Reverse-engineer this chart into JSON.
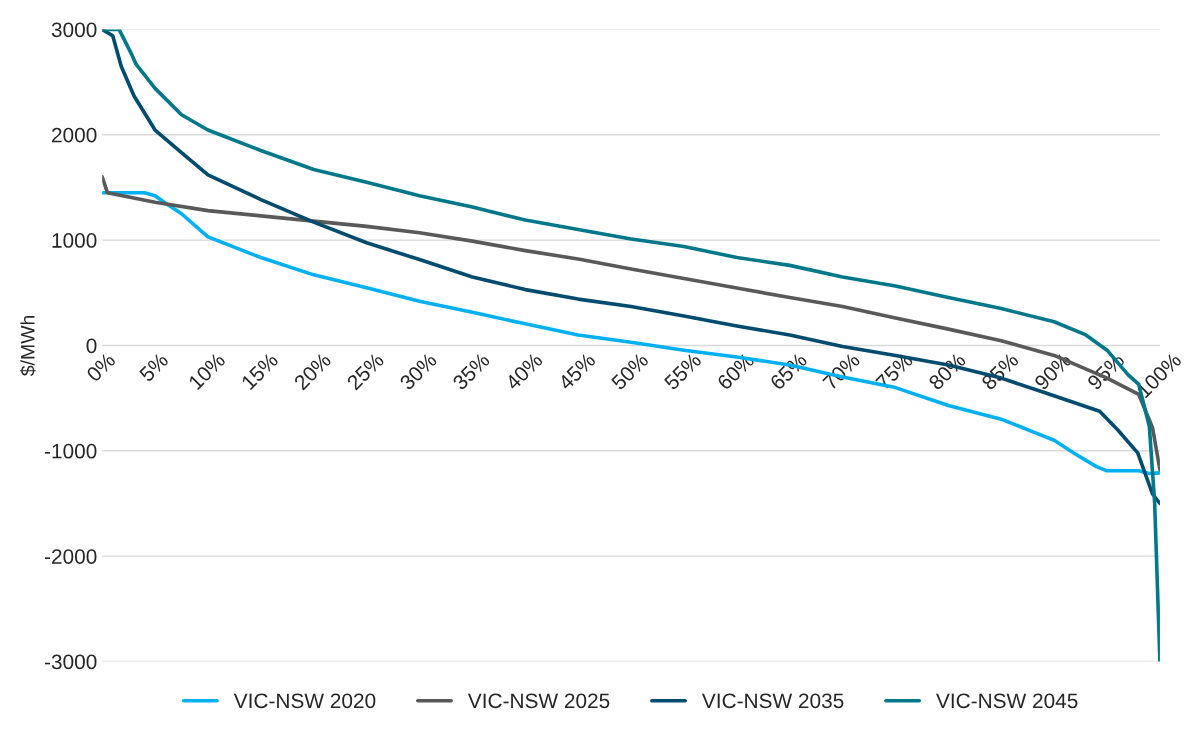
{
  "chart_data": {
    "type": "line",
    "ylabel": "$/MWh",
    "xlim": [
      0,
      100
    ],
    "ylim": [
      -3000,
      3000
    ],
    "yticks": [
      -3000,
      -2000,
      -1000,
      0,
      1000,
      2000,
      3000
    ],
    "xticks": [
      {
        "value": 0,
        "label": "0%"
      },
      {
        "value": 5,
        "label": "5%"
      },
      {
        "value": 10,
        "label": "10%"
      },
      {
        "value": 15,
        "label": "15%"
      },
      {
        "value": 20,
        "label": "20%"
      },
      {
        "value": 25,
        "label": "25%"
      },
      {
        "value": 30,
        "label": "30%"
      },
      {
        "value": 35,
        "label": "35%"
      },
      {
        "value": 40,
        "label": "40%"
      },
      {
        "value": 45,
        "label": "45%"
      },
      {
        "value": 50,
        "label": "50%"
      },
      {
        "value": 55,
        "label": "55%"
      },
      {
        "value": 60,
        "label": "60%"
      },
      {
        "value": 65,
        "label": "65%"
      },
      {
        "value": 70,
        "label": "70%"
      },
      {
        "value": 75,
        "label": "75%"
      },
      {
        "value": 80,
        "label": "80%"
      },
      {
        "value": 85,
        "label": "85%"
      },
      {
        "value": 90,
        "label": "90%"
      },
      {
        "value": 95,
        "label": "95%"
      },
      {
        "value": 100,
        "label": "100%"
      }
    ],
    "grid": "y",
    "legend": "bottom",
    "line_style": "solid",
    "series": [
      {
        "name": "VIC-NSW 2020",
        "color": "#00b0f0",
        "x": [
          0,
          2,
          4,
          5,
          6,
          7.5,
          10,
          15,
          20,
          25,
          30,
          35,
          40,
          45,
          50,
          55,
          60,
          65,
          70,
          75,
          80,
          85,
          88,
          90,
          92,
          94,
          95,
          96,
          98,
          99,
          100
        ],
        "values": [
          1450,
          1450,
          1450,
          1420,
          1350,
          1250,
          1030,
          835,
          670,
          548,
          420,
          315,
          205,
          100,
          30,
          -45,
          -110,
          -185,
          -300,
          -400,
          -570,
          -700,
          -820,
          -900,
          -1030,
          -1150,
          -1190,
          -1190,
          -1190,
          -1215,
          -1210
        ]
      },
      {
        "name": "VIC-NSW 2025",
        "color": "#595959",
        "x": [
          0,
          0.5,
          5,
          10,
          15,
          20,
          25,
          30,
          35,
          40,
          45,
          50,
          55,
          60,
          65,
          70,
          75,
          80,
          85,
          90,
          95,
          98,
          99.3,
          100
        ],
        "values": [
          1600,
          1450,
          1360,
          1280,
          1230,
          1180,
          1130,
          1070,
          990,
          900,
          820,
          725,
          635,
          545,
          455,
          370,
          260,
          155,
          45,
          -95,
          -310,
          -465,
          -780,
          -1180
        ]
      },
      {
        "name": "VIC-NSW 2035",
        "color": "#004b6e",
        "x": [
          0,
          1,
          1.8,
          3,
          5,
          7.5,
          10,
          15,
          20,
          25,
          30,
          35,
          40,
          45,
          50,
          55,
          60,
          65,
          70,
          75,
          80,
          85,
          89,
          94.3,
          96,
          97.9,
          99.3,
          100
        ],
        "values": [
          3000,
          2940,
          2650,
          2370,
          2045,
          1830,
          1620,
          1385,
          1170,
          975,
          815,
          650,
          530,
          440,
          370,
          280,
          185,
          100,
          -10,
          -95,
          -185,
          -310,
          -445,
          -625,
          -800,
          -1020,
          -1410,
          -1500
        ]
      },
      {
        "name": "VIC-NSW 2045",
        "color": "#00788a",
        "x": [
          0,
          1.6,
          2.8,
          3.2,
          5,
          7.5,
          10,
          15,
          20,
          25,
          30,
          35,
          40,
          45,
          50,
          55,
          60,
          65,
          70,
          75,
          80,
          85,
          90,
          93,
          95,
          97,
          98,
          99,
          99.5,
          100
        ],
        "values": [
          3000,
          3000,
          2760,
          2670,
          2440,
          2190,
          2045,
          1850,
          1670,
          1550,
          1420,
          1315,
          1190,
          1100,
          1010,
          940,
          835,
          760,
          650,
          565,
          455,
          350,
          225,
          100,
          -45,
          -280,
          -370,
          -770,
          -1490,
          -3000
        ]
      }
    ]
  }
}
